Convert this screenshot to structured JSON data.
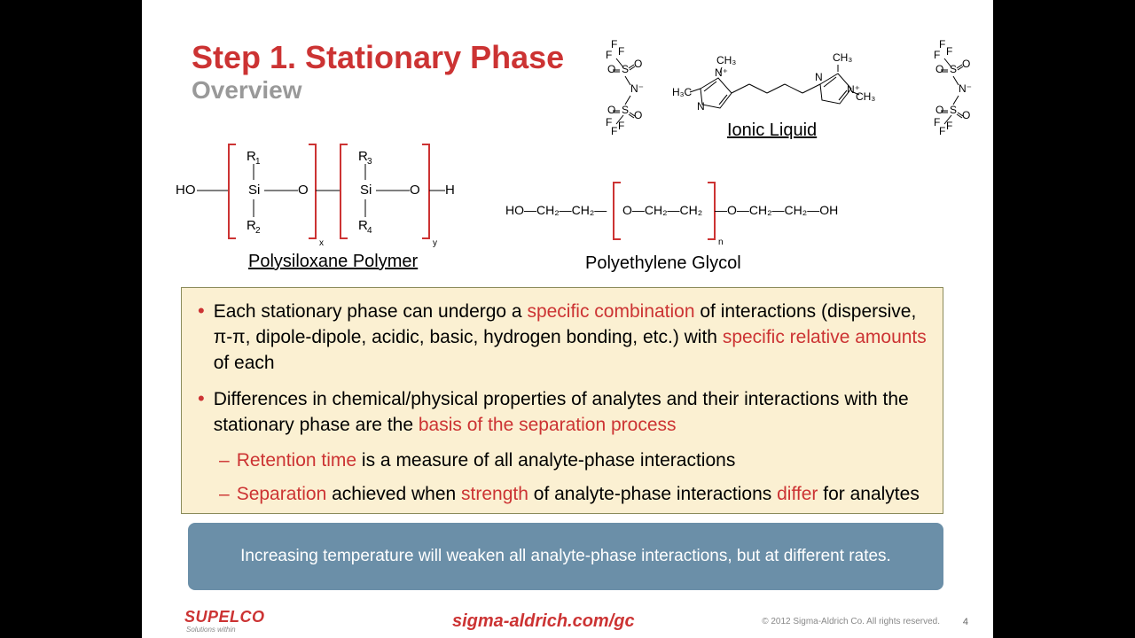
{
  "colors": {
    "accent": "#cc3333",
    "subtitle": "#999999",
    "text": "#000000",
    "box_bg": "#fbf0d2",
    "box_border": "#8b8b5a",
    "blue_box_bg": "#6b8fa8",
    "blue_box_text": "#ffffff",
    "background": "#ffffff",
    "letterbox": "#000000",
    "footer_gray": "#888888"
  },
  "title": "Step 1. Stationary Phase",
  "subtitle": "Overview",
  "labels": {
    "ionic_liquid": "Ionic Liquid",
    "polysiloxane": "Polysiloxane Polymer",
    "peg": "Polyethylene Glycol"
  },
  "diagrams": {
    "polysiloxane": {
      "type": "chemical-structure",
      "bracket_color": "#cc3333",
      "subscripts": [
        "x",
        "y"
      ],
      "r_groups": [
        "R1",
        "R2",
        "R3",
        "R4"
      ],
      "backbone": "HO—[Si—O]x—[Si—O]y—H"
    },
    "peg": {
      "type": "chemical-structure",
      "bracket_color": "#cc3333",
      "subscripts": [
        "n"
      ],
      "backbone": "HO—CH2—CH2—[O—CH2—CH2]n—O—CH2—CH2—OH"
    },
    "ionic_liquid": {
      "type": "chemical-structure",
      "anion_groups": [
        "CF3-SO2-N-SO2-CF3",
        "CF3-SO2-N-SO2-CF3"
      ],
      "cation": "dimethyl-imidazolium linked dication with CH3 groups"
    }
  },
  "bullets": [
    {
      "parts": [
        {
          "t": "Each stationary phase can undergo a ",
          "hl": false
        },
        {
          "t": "specific combination",
          "hl": true
        },
        {
          "t": " of interactions (dispersive, π-π, dipole-dipole, acidic, basic, hydrogen bonding, etc.) with ",
          "hl": false
        },
        {
          "t": "specific relative amounts",
          "hl": true
        },
        {
          "t": " of each",
          "hl": false
        }
      ]
    },
    {
      "parts": [
        {
          "t": "Differences in chemical/physical properties of analytes and their interactions with the stationary phase are the ",
          "hl": false
        },
        {
          "t": "basis of the separation process",
          "hl": true
        }
      ],
      "subs": [
        {
          "parts": [
            {
              "t": "Retention time",
              "hl": true
            },
            {
              "t": " is a measure of all analyte-phase interactions",
              "hl": false
            }
          ]
        },
        {
          "parts": [
            {
              "t": "Separation",
              "hl": true
            },
            {
              "t": " achieved when ",
              "hl": false
            },
            {
              "t": "strength",
              "hl": true
            },
            {
              "t": " of analyte-phase interactions ",
              "hl": false
            },
            {
              "t": "differ",
              "hl": true
            },
            {
              "t": " for analytes",
              "hl": false
            }
          ]
        }
      ]
    }
  ],
  "blue_box": "Increasing temperature will weaken all analyte-phase interactions, but at different rates.",
  "footer": {
    "brand": "SUPELCO",
    "brand_tag": "Solutions within",
    "link": "sigma-aldrich.com/gc",
    "copyright": "© 2012 Sigma-Aldrich Co. All rights reserved.",
    "page": "4"
  }
}
